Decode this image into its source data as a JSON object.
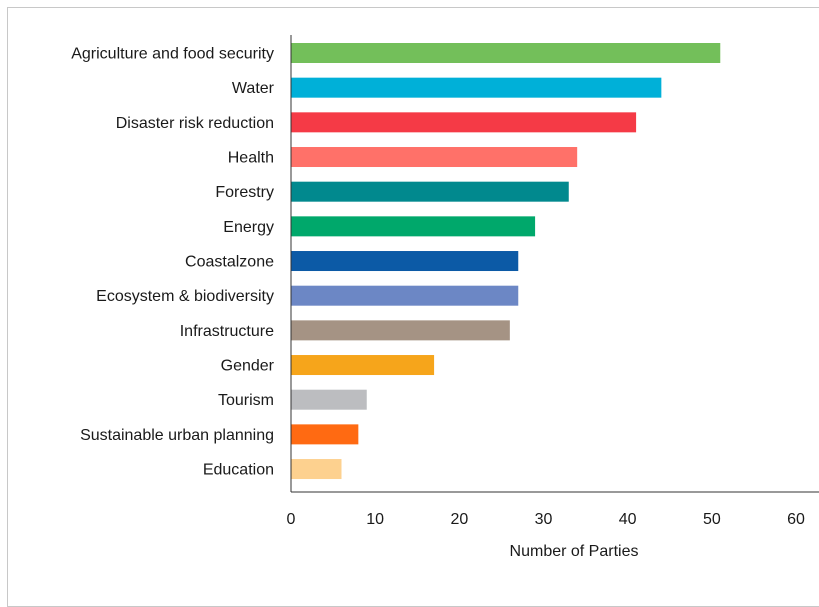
{
  "chart_data": {
    "type": "bar",
    "orientation": "horizontal",
    "title": "",
    "xlabel": "Number of Parties",
    "ylabel": "",
    "xlim": [
      0,
      60
    ],
    "xticks": [
      0,
      10,
      20,
      30,
      40,
      50,
      60
    ],
    "grid": false,
    "categories": [
      "Agriculture and food security",
      "Water",
      "Disaster risk reduction",
      "Health",
      "Forestry",
      "Energy",
      "Coastalzone",
      "Ecosystem & biodiversity",
      "Infrastructure",
      "Gender",
      "Tourism",
      "Sustainable urban planning",
      "Education"
    ],
    "values": [
      51,
      44,
      41,
      34,
      33,
      29,
      27,
      27,
      26,
      17,
      9,
      8,
      6
    ],
    "colors": [
      "#73bf5a",
      "#00b0d8",
      "#f53a46",
      "#ff7169",
      "#01898e",
      "#00a86b",
      "#0c5aa6",
      "#6c87c5",
      "#a59384",
      "#f6a51b",
      "#bcbdc0",
      "#ff6a12",
      "#fdd18f"
    ]
  }
}
